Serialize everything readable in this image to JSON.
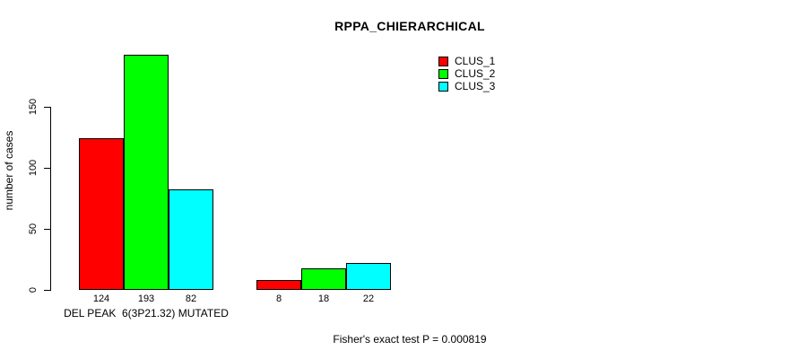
{
  "title": "RPPA_CHIERARCHICAL",
  "y_axis": {
    "label": "number of cases",
    "ticks": [
      0,
      50,
      100,
      150
    ]
  },
  "footer": "Fisher's exact test P = 0.000819",
  "legend": {
    "items": [
      {
        "label": "CLUS_1",
        "color": "#FF0000"
      },
      {
        "label": "CLUS_2",
        "color": "#00FF00"
      },
      {
        "label": "CLUS_3",
        "color": "#00FFFF"
      }
    ]
  },
  "chart_data": {
    "type": "bar",
    "title": "RPPA_CHIERARCHICAL",
    "ylabel": "number of cases",
    "xlabel": "",
    "yticks": [
      0,
      50,
      100,
      150
    ],
    "ylim": [
      0,
      200
    ],
    "grid": false,
    "legend_position": "top-right",
    "categories": [
      "DEL PEAK  6(3P21.32) MUTATED",
      ""
    ],
    "series": [
      {
        "name": "CLUS_1",
        "color": "#FF0000",
        "values": [
          124,
          8
        ]
      },
      {
        "name": "CLUS_2",
        "color": "#00FF00",
        "values": [
          193,
          18
        ]
      },
      {
        "name": "CLUS_3",
        "color": "#00FFFF",
        "values": [
          82,
          22
        ]
      }
    ],
    "bar_value_labels": [
      [
        124,
        193,
        82
      ],
      [
        8,
        18,
        22
      ]
    ],
    "annotation": "Fisher's exact test P = 0.000819",
    "colors": {
      "background": "#FFFFFF",
      "axis": "#000000",
      "text": "#000000"
    }
  }
}
